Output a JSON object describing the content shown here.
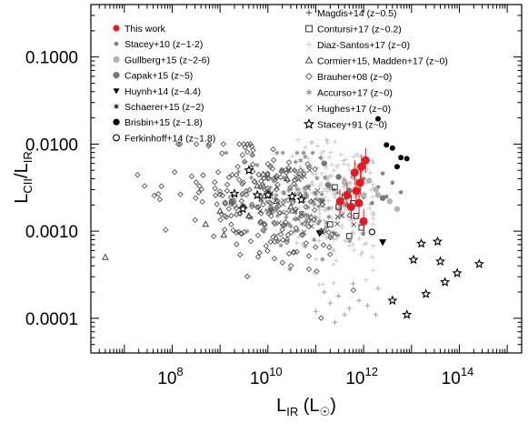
{
  "chart_data": {
    "type": "scatter",
    "xlabel": "L_IR (L_☉)",
    "ylabel": "L_CII/L_IR",
    "xscale": "log",
    "yscale": "log",
    "xlim": [
      2000000.0,
      2000000000000000.0
    ],
    "ylim": [
      4e-05,
      0.4
    ],
    "x_ticks": [
      {
        "exp": "8"
      },
      {
        "exp": "10"
      },
      {
        "exp": "12"
      },
      {
        "exp": "14"
      }
    ],
    "y_ticks": [
      "0.1000",
      "0.0100",
      "0.0010",
      "0.0001"
    ],
    "legend_left": [
      {
        "name": "This work",
        "marker": "filled-circle",
        "color": "#e11b22"
      },
      {
        "name": "Stacey+10 (z~1-2)",
        "marker": "star6",
        "color": "#7a7a7a"
      },
      {
        "name": "Gullberg+15 (z~2-6)",
        "marker": "filled-circle",
        "color": "#b3b3b3"
      },
      {
        "name": "Capak+15 (z~5)",
        "marker": "filled-circle",
        "color": "#777777"
      },
      {
        "name": "Huynh+14 (z~4.4)",
        "marker": "triangle-down",
        "color": "#000000"
      },
      {
        "name": "Schaerer+15 (z~2)",
        "marker": "star6",
        "color": "#333333"
      },
      {
        "name": "Brisbin+15 (z~1.8)",
        "marker": "filled-circle",
        "color": "#000000"
      },
      {
        "name": "Ferkinhoff+14 (z~1.8)",
        "marker": "open-circle",
        "color": "#000000"
      }
    ],
    "legend_right": [
      {
        "name": "Magdis+14 (z~0.5)",
        "marker": "plus",
        "color": "#444444"
      },
      {
        "name": "Contursi+17 (z~0.2)",
        "marker": "open-square",
        "color": "#333333"
      },
      {
        "name": "Diaz-Santos+17 (z~0)",
        "marker": "plus",
        "color": "#c8c8c8"
      },
      {
        "name": "Cormier+15, Madden+17 (z~0)",
        "marker": "open-triangle",
        "color": "#444444"
      },
      {
        "name": "Brauher+08 (z~0)",
        "marker": "open-diamond",
        "color": "#555555"
      },
      {
        "name": "Accurso+17 (z~0)",
        "marker": "asterisk",
        "color": "#888888"
      },
      {
        "name": "Hughes+17 (z~0)",
        "marker": "cross",
        "color": "#555555"
      },
      {
        "name": "Stacey+91 (z~0)",
        "marker": "open-star",
        "color": "#000000"
      }
    ],
    "series": [
      {
        "name": "This work",
        "marker": "filled-circle",
        "color": "#e11b22",
        "size": 4.5,
        "error_bars": true,
        "points": [
          [
            320000000000.0,
            0.0022
          ],
          [
            450000000000.0,
            0.0026
          ],
          [
            550000000000.0,
            0.0019
          ],
          [
            700000000000.0,
            0.0029
          ],
          [
            800000000000.0,
            0.0021
          ],
          [
            850000000000.0,
            0.0036
          ],
          [
            1000000000000.0,
            0.0013
          ],
          [
            650000000000.0,
            0.0047
          ],
          [
            1100000000000.0,
            0.0065
          ],
          [
            900000000000.0,
            0.0055
          ]
        ]
      },
      {
        "name": "Stacey+10 (z~1-2)",
        "marker": "star6",
        "color": "#7a7a7a",
        "size": 3.2,
        "points": [
          [
            1000000000000.0,
            0.004
          ],
          [
            2000000000000.0,
            0.0032
          ],
          [
            3000000000000.0,
            0.0025
          ],
          [
            1500000000000.0,
            0.0021
          ],
          [
            500000000000.0,
            0.003
          ],
          [
            2500000000000.0,
            0.0046
          ],
          [
            6000000000000.0,
            0.0028
          ],
          [
            4000000000000.0,
            0.0036
          ]
        ]
      },
      {
        "name": "Gullberg+15 (z~2-6)",
        "marker": "filled-circle",
        "color": "#b3b3b3",
        "size": 3.2,
        "points": [
          [
            400000000000.0,
            0.0036
          ],
          [
            600000000000.0,
            0.0042
          ],
          [
            800000000000.0,
            0.003
          ],
          [
            1300000000000.0,
            0.0038
          ],
          [
            2000000000000.0,
            0.0026
          ],
          [
            3500000000000.0,
            0.0022
          ],
          [
            5000000000000.0,
            0.0018
          ],
          [
            1000000000000.0,
            0.0026
          ],
          [
            700000000000.0,
            0.0049
          ],
          [
            1800000000000.0,
            0.003
          ]
        ]
      },
      {
        "name": "Capak+15 (z~5)",
        "marker": "filled-circle",
        "color": "#777777",
        "size": 3.2,
        "points": [
          [
            150000000000.0,
            0.006
          ],
          [
            300000000000.0,
            0.0042
          ],
          [
            500000000000.0,
            0.0029
          ],
          [
            2500000000000.0,
            0.0024
          ],
          [
            180000000000.0,
            0.0034
          ]
        ]
      },
      {
        "name": "Huynh+14 (z~4.4)",
        "marker": "triangle-down",
        "color": "#000000",
        "size": 4,
        "points": [
          [
            2500000000000.0,
            0.00075
          ],
          [
            120000000000.0,
            0.00095
          ]
        ]
      },
      {
        "name": "Schaerer+15 (z~2)",
        "marker": "star6",
        "color": "#333333",
        "size": 4,
        "points": [
          [
            130000000000.0,
            0.00098
          ],
          [
            10000000000.0,
            0.0026
          ]
        ]
      },
      {
        "name": "Brisbin+15 (z~1.8)",
        "marker": "filled-circle",
        "color": "#000000",
        "size": 3,
        "points": [
          [
            2000000000000.0,
            0.0195
          ],
          [
            3000000000000.0,
            0.0098
          ],
          [
            4000000000000.0,
            0.009
          ],
          [
            6000000000000.0,
            0.007
          ],
          [
            8000000000000.0,
            0.0068
          ],
          [
            5000000000000.0,
            0.0055
          ]
        ]
      },
      {
        "name": "Ferkinhoff+14 (z~1.8)",
        "marker": "open-circle",
        "color": "#000000",
        "size": 3,
        "points": [
          [
            1500000000000.0,
            0.00098
          ]
        ]
      },
      {
        "name": "Magdis+14 (z~0.5)",
        "marker": "plus",
        "color": "#999999",
        "size": 2.8,
        "points": [
          [
            100000000000.0,
            0.00012
          ],
          [
            150000000000.0,
            0.0002
          ],
          [
            200000000000.0,
            0.00015
          ],
          [
            250000000000.0,
            9e-05
          ],
          [
            300000000000.0,
            0.00018
          ],
          [
            400000000000.0,
            0.00011
          ],
          [
            500000000000.0,
            0.00013
          ],
          [
            600000000000.0,
            0.00025
          ],
          [
            800000000000.0,
            0.00016
          ],
          [
            1200000000000.0,
            0.00014
          ],
          [
            2000000000000.0,
            0.00022
          ],
          [
            1800000000000.0,
            0.00011
          ]
        ]
      },
      {
        "name": "Contursi+17 (z~0.2)",
        "marker": "open-square",
        "color": "#333333",
        "size": 2.8,
        "points": [
          [
            200000000000.0,
            0.0012
          ],
          [
            300000000000.0,
            0.0019
          ],
          [
            400000000000.0,
            0.0025
          ],
          [
            500000000000.0,
            0.00088
          ],
          [
            700000000000.0,
            0.0015
          ],
          [
            900000000000.0,
            0.0011
          ],
          [
            250000000000.0,
            0.0032
          ],
          [
            600000000000.0,
            0.0021
          ]
        ]
      },
      {
        "name": "Diaz-Santos+17 (z~0)",
        "marker": "plus",
        "color": "#c8c8c8",
        "size": 2.6,
        "generate": {
          "seed": 7,
          "n": 230,
          "logx": [
            10.4,
            12.2
          ],
          "logy": [
            -3.8,
            -1.95
          ],
          "cx": 11.4,
          "cy": -2.65,
          "sx": 0.45,
          "sy": 0.36
        }
      },
      {
        "name": "Cormier+15, Madden+17 (z~0)",
        "marker": "open-triangle",
        "color": "#444444",
        "size": 3,
        "points": [
          [
            4000000.0,
            0.0005
          ],
          [
            500000000.0,
            0.0012
          ],
          [
            1000000000.0,
            0.0017
          ],
          [
            2000000000.0,
            0.0027
          ],
          [
            4000000000.0,
            0.0015
          ],
          [
            8000000000.0,
            0.0045
          ],
          [
            15000000000.0,
            0.0022
          ],
          [
            30000000000.0,
            0.0019
          ],
          [
            6000000000.0,
            0.0033
          ],
          [
            1200000000.0,
            0.0009
          ],
          [
            25000000000.0,
            0.004
          ]
        ]
      },
      {
        "name": "Brauher+08 (z~0)",
        "marker": "open-diamond",
        "color": "#555555",
        "size": 2.6,
        "generate": {
          "seed": 21,
          "n": 230,
          "logx": [
            6.3,
            12.3
          ],
          "logy": [
            -4.3,
            -2.0
          ],
          "cx": 9.9,
          "cy": -2.7,
          "sx": 0.85,
          "sy": 0.35
        }
      },
      {
        "name": "Accurso+17 (z~0)",
        "marker": "asterisk",
        "color": "#888888",
        "size": 2.6,
        "generate": {
          "seed": 43,
          "n": 110,
          "logx": [
            8.8,
            12.6
          ],
          "logy": [
            -3.9,
            -2.1
          ],
          "cx": 10.6,
          "cy": -2.6,
          "sx": 0.65,
          "sy": 0.32
        }
      },
      {
        "name": "Hughes+17 (z~0)",
        "marker": "cross",
        "color": "#555555",
        "size": 2.6,
        "generate": {
          "seed": 67,
          "n": 35,
          "logx": [
            9.6,
            11.8
          ],
          "logy": [
            -3.2,
            -2.3
          ],
          "cx": 10.7,
          "cy": -2.7,
          "sx": 0.5,
          "sy": 0.22
        }
      },
      {
        "name": "Stacey+91 (z~0)",
        "marker": "open-star",
        "color": "#000000",
        "size": 4.4,
        "points": [
          [
            4000000000.0,
            0.005
          ],
          [
            2000000000.0,
            0.0027
          ],
          [
            3000000000.0,
            0.0018
          ],
          [
            10000000000.0,
            0.0026
          ],
          [
            6000000000.0,
            0.0026
          ],
          [
            32000000000.0,
            0.0025
          ],
          [
            50000000000.0,
            0.0023
          ],
          [
            11000000000000.0,
            0.00047
          ],
          [
            16000000000000.0,
            0.00072
          ],
          [
            40000000000000.0,
            0.00045
          ],
          [
            90000000000000.0,
            0.00033
          ],
          [
            260000000000000.0,
            0.00042
          ],
          [
            50000000000000.0,
            0.00026
          ],
          [
            35000000000000.0,
            0.00076
          ],
          [
            8000000000000.0,
            0.00011
          ],
          [
            20000000000000.0,
            0.00019
          ],
          [
            4000000000000.0,
            0.00016
          ]
        ]
      }
    ]
  }
}
